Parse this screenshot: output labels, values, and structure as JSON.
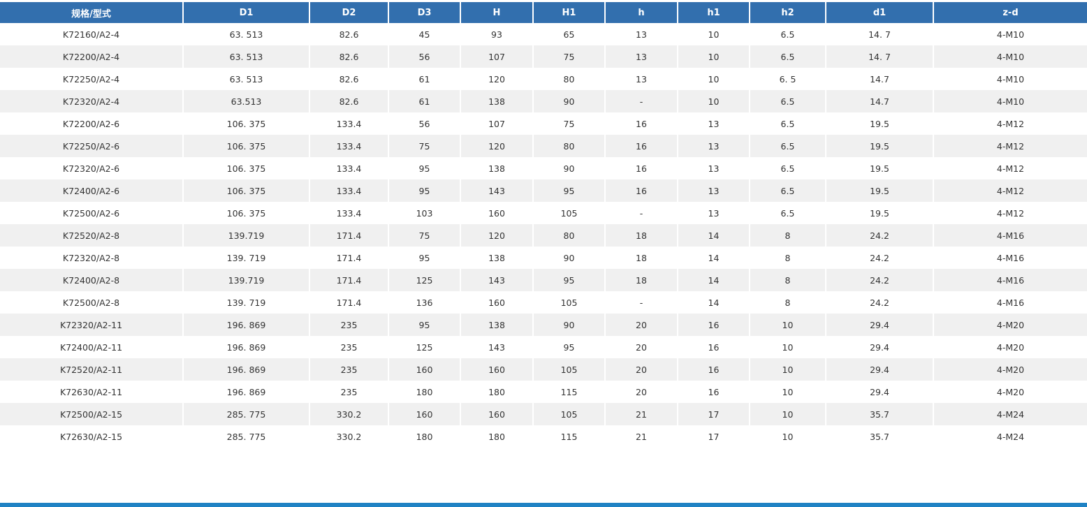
{
  "table": {
    "headers": [
      "规格/型式",
      "D1",
      "D2",
      "D3",
      "H",
      "H1",
      "h",
      "h1",
      "h2",
      "d1",
      "z-d"
    ],
    "rows": [
      [
        "K72160/A2-4",
        "63. 513",
        "82.6",
        "45",
        "93",
        "65",
        "13",
        "10",
        "6.5",
        "14. 7",
        "4-M10"
      ],
      [
        "K72200/A2-4",
        "63. 513",
        "82.6",
        "56",
        "107",
        "75",
        "13",
        "10",
        "6.5",
        "14. 7",
        "4-M10"
      ],
      [
        "K72250/A2-4",
        "63. 513",
        "82.6",
        "61",
        "120",
        "80",
        "13",
        "10",
        "6. 5",
        "14.7",
        "4-M10"
      ],
      [
        "K72320/A2-4",
        "63.513",
        "82.6",
        "61",
        "138",
        "90",
        "-",
        "10",
        "6.5",
        "14.7",
        "4-M10"
      ],
      [
        "K72200/A2-6",
        "106. 375",
        "133.4",
        "56",
        "107",
        "75",
        "16",
        "13",
        "6.5",
        "19.5",
        "4-M12"
      ],
      [
        "K72250/A2-6",
        "106. 375",
        "133.4",
        "75",
        "120",
        "80",
        "16",
        "13",
        "6.5",
        "19.5",
        "4-M12"
      ],
      [
        "K72320/A2-6",
        "106. 375",
        "133.4",
        "95",
        "138",
        "90",
        "16",
        "13",
        "6.5",
        "19.5",
        "4-M12"
      ],
      [
        "K72400/A2-6",
        "106. 375",
        "133.4",
        "95",
        "143",
        "95",
        "16",
        "13",
        "6.5",
        "19.5",
        "4-M12"
      ],
      [
        "K72500/A2-6",
        "106. 375",
        "133.4",
        "103",
        "160",
        "105",
        "-",
        "13",
        "6.5",
        "19.5",
        "4-M12"
      ],
      [
        "K72520/A2-8",
        "139.719",
        "171.4",
        "75",
        "120",
        "80",
        "18",
        "14",
        "8",
        "24.2",
        "4-M16"
      ],
      [
        "K72320/A2-8",
        "139. 719",
        "171.4",
        "95",
        "138",
        "90",
        "18",
        "14",
        "8",
        "24.2",
        "4-M16"
      ],
      [
        "K72400/A2-8",
        "139.719",
        "171.4",
        "125",
        "143",
        "95",
        "18",
        "14",
        "8",
        "24.2",
        "4-M16"
      ],
      [
        "K72500/A2-8",
        "139. 719",
        "171.4",
        "136",
        "160",
        "105",
        "-",
        "14",
        "8",
        "24.2",
        "4-M16"
      ],
      [
        "K72320/A2-11",
        "196. 869",
        "235",
        "95",
        "138",
        "90",
        "20",
        "16",
        "10",
        "29.4",
        "4-M20"
      ],
      [
        "K72400/A2-11",
        "196. 869",
        "235",
        "125",
        "143",
        "95",
        "20",
        "16",
        "10",
        "29.4",
        "4-M20"
      ],
      [
        "K72520/A2-11",
        "196. 869",
        "235",
        "160",
        "160",
        "105",
        "20",
        "16",
        "10",
        "29.4",
        "4-M20"
      ],
      [
        "K72630/A2-11",
        "196. 869",
        "235",
        "180",
        "180",
        "115",
        "20",
        "16",
        "10",
        "29.4",
        "4-M20"
      ],
      [
        "K72500/A2-15",
        "285. 775",
        "330.2",
        "160",
        "160",
        "105",
        "21",
        "17",
        "10",
        "35.7",
        "4-M24"
      ],
      [
        "K72630/A2-15",
        "285. 775",
        "330.2",
        "180",
        "180",
        "115",
        "21",
        "17",
        "10",
        "35.7",
        "4-M24"
      ]
    ]
  },
  "colors": {
    "header_bg": "#326fae",
    "header_text": "#ffffff",
    "row_alt_bg": "#f0f0f0",
    "bottom_bar": "#1f82c4"
  }
}
